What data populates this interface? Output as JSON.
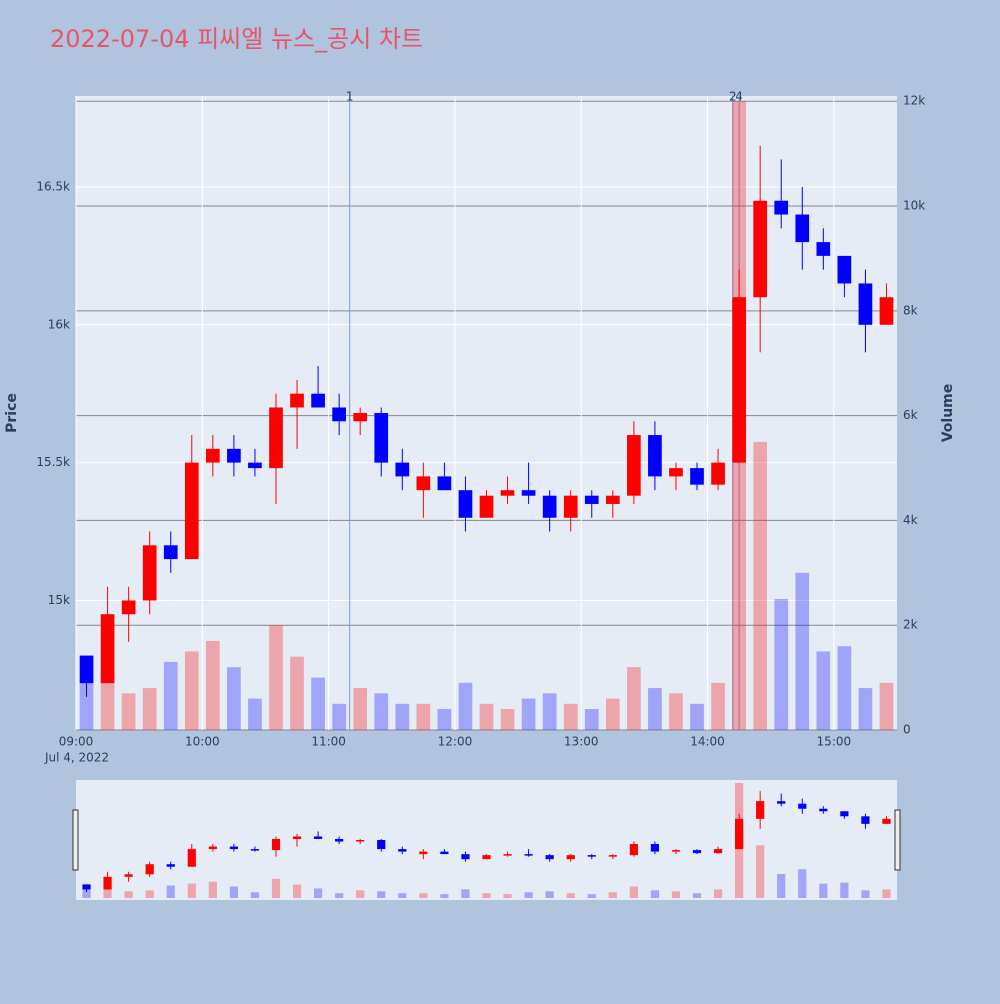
{
  "chart_data": {
    "type": "candlestick",
    "title": "2022-07-04 피씨엘 뉴스_공시 차트",
    "y_label": "Price",
    "y2_label": "Volume",
    "date_label": "Jul 4, 2022",
    "increasing_color": "#ff0000",
    "decreasing_color": "#0000ff",
    "x": [
      "09:00",
      "09:10",
      "09:20",
      "09:30",
      "09:40",
      "09:50",
      "10:00",
      "10:10",
      "10:20",
      "10:30",
      "10:40",
      "10:50",
      "11:00",
      "11:10",
      "11:20",
      "11:30",
      "11:40",
      "11:50",
      "12:00",
      "12:10",
      "12:20",
      "12:30",
      "12:40",
      "12:50",
      "13:00",
      "13:10",
      "13:20",
      "13:30",
      "13:40",
      "13:50",
      "14:00",
      "14:10",
      "14:20",
      "14:30",
      "14:40",
      "14:50",
      "15:00",
      "15:10",
      "15:20"
    ],
    "open": [
      14800,
      14700,
      14950,
      15000,
      15200,
      15150,
      15500,
      15550,
      15500,
      15480,
      15700,
      15750,
      15700,
      15650,
      15680,
      15500,
      15400,
      15450,
      15400,
      15300,
      15380,
      15400,
      15380,
      15300,
      15380,
      15350,
      15380,
      15600,
      15450,
      15480,
      15420,
      15500,
      16100,
      16450,
      16400,
      16300,
      16250,
      16150,
      16000
    ],
    "high": [
      14800,
      15050,
      15050,
      15250,
      15250,
      15600,
      15600,
      15600,
      15550,
      15750,
      15800,
      15850,
      15750,
      15700,
      15700,
      15550,
      15500,
      15500,
      15450,
      15400,
      15450,
      15500,
      15400,
      15400,
      15400,
      15400,
      15650,
      15650,
      15500,
      15500,
      15550,
      16200,
      16650,
      16600,
      16500,
      16350,
      16250,
      16200,
      16150
    ],
    "low": [
      14650,
      14700,
      14850,
      14950,
      15100,
      15150,
      15450,
      15450,
      15450,
      15350,
      15550,
      15700,
      15600,
      15600,
      15450,
      15400,
      15300,
      15400,
      15250,
      15300,
      15350,
      15350,
      15250,
      15250,
      15300,
      15300,
      15350,
      15400,
      15400,
      15400,
      15400,
      15500,
      15900,
      16350,
      16200,
      16200,
      16100,
      15900,
      16000
    ],
    "close": [
      14700,
      14950,
      15000,
      15200,
      15150,
      15500,
      15550,
      15500,
      15480,
      15700,
      15750,
      15700,
      15650,
      15680,
      15500,
      15450,
      15450,
      15400,
      15300,
      15380,
      15400,
      15380,
      15300,
      15380,
      15350,
      15380,
      15600,
      15450,
      15480,
      15420,
      15500,
      16100,
      16450,
      16400,
      16300,
      16250,
      16150,
      16000,
      16100
    ],
    "volume": [
      900,
      1100,
      700,
      800,
      1300,
      1500,
      1700,
      1200,
      600,
      2000,
      1400,
      1000,
      500,
      800,
      700,
      500,
      500,
      400,
      900,
      500,
      400,
      600,
      700,
      500,
      400,
      600,
      1200,
      800,
      700,
      500,
      900,
      12000,
      5500,
      2500,
      3000,
      1500,
      1600,
      800,
      900
    ],
    "xlim": [
      "09:00",
      "15:30"
    ],
    "xticks": [
      "09:00",
      "10:00",
      "11:00",
      "12:00",
      "13:00",
      "14:00",
      "15:00"
    ],
    "ylim": [
      14530,
      16830
    ],
    "yticks": [
      {
        "value": 15000,
        "label": "15k"
      },
      {
        "value": 15500,
        "label": "15.5k"
      },
      {
        "value": 16000,
        "label": "16k"
      },
      {
        "value": 16500,
        "label": "16.5k"
      }
    ],
    "y2lim": [
      0,
      12100
    ],
    "y2ticks": [
      0,
      {
        "value": 2000,
        "label": "2k"
      },
      {
        "value": 4000,
        "label": "4k"
      },
      {
        "value": 6000,
        "label": "6k"
      },
      {
        "value": 8000,
        "label": "8k"
      },
      {
        "value": 10000,
        "label": "10k"
      },
      {
        "value": 12000,
        "label": "12k"
      }
    ],
    "annotations": [
      {
        "x": "11:10",
        "label": "1"
      },
      {
        "x": "14:12",
        "label": "2"
      },
      {
        "x": "14:15",
        "label": "4"
      }
    ]
  }
}
